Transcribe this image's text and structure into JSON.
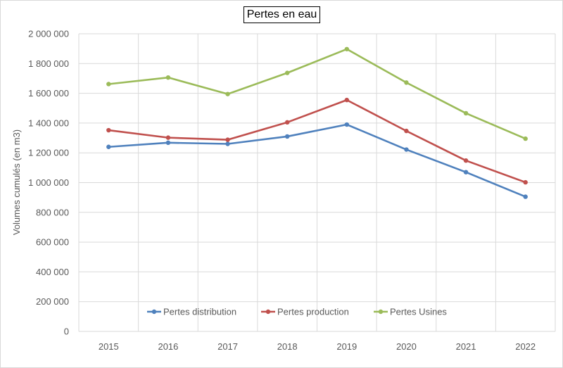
{
  "chart_data": {
    "type": "line",
    "title": "Pertes en eau",
    "ylabel": "Volumes cumulés (en m3)",
    "xlabel": "",
    "categories": [
      "2015",
      "2016",
      "2017",
      "2018",
      "2019",
      "2020",
      "2021",
      "2022"
    ],
    "ylim": [
      0,
      2000000
    ],
    "yticks": [
      0,
      200000,
      400000,
      600000,
      800000,
      1000000,
      1200000,
      1400000,
      1600000,
      1800000,
      2000000
    ],
    "ytick_labels": [
      "0",
      "200 000",
      "400 000",
      "600 000",
      "800 000",
      "1 000 000",
      "1 200 000",
      "1 400 000",
      "1 600 000",
      "1 800 000",
      "2 000 000"
    ],
    "grid": true,
    "legend_position": "bottom",
    "series": [
      {
        "name": "Pertes distribution",
        "color": "#4f81bd",
        "values": [
          1240000,
          1268000,
          1260000,
          1310000,
          1390000,
          1222000,
          1070000,
          905000
        ]
      },
      {
        "name": "Pertes production",
        "color": "#c0504d",
        "values": [
          1352000,
          1302000,
          1288000,
          1405000,
          1555000,
          1347000,
          1148000,
          1002000
        ]
      },
      {
        "name": "Pertes Usines",
        "color": "#9bbb59",
        "values": [
          1662000,
          1706000,
          1595000,
          1737000,
          1897000,
          1672000,
          1466000,
          1295000
        ]
      }
    ]
  }
}
